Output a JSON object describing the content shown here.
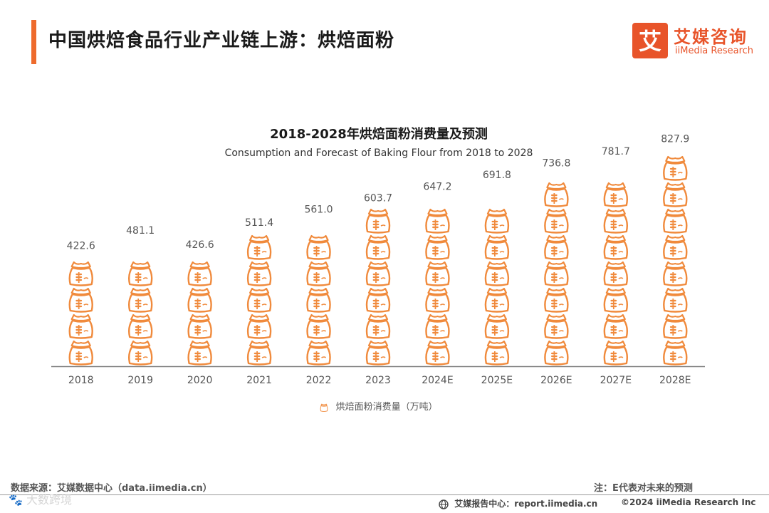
{
  "header": {
    "title": "中国烘焙食品行业产业链上游：烘焙面粉",
    "logo_cn": "艾媒咨询",
    "logo_en": "iiMedia Research",
    "logo_glyph": "艾"
  },
  "colors": {
    "accent": "#ee6b2d",
    "icon_orange": "#f08a3c",
    "axis": "#7f7f7f",
    "label": "#555555"
  },
  "chart_data": {
    "type": "bar",
    "title": "2018-2028年烘焙面粉消费量及预测",
    "subtitle": "Consumption and Forecast  of Baking Flour  from 2018 to 2028",
    "categories": [
      "2018",
      "2019",
      "2020",
      "2021",
      "2022",
      "2023",
      "2024E",
      "2025E",
      "2026E",
      "2027E",
      "2028E"
    ],
    "series": [
      {
        "name": "烘焙面粉消费量（万吨）",
        "values": [
          422.6,
          481.1,
          426.6,
          511.4,
          561.0,
          603.7,
          647.2,
          691.8,
          736.8,
          781.7,
          827.9
        ],
        "value_labels": [
          "422.6",
          "481.1",
          "426.6",
          "511.4",
          "561.0",
          "603.7",
          "647.2",
          "691.8",
          "736.8",
          "781.7",
          "827.9"
        ]
      }
    ],
    "legend_position": "bottom",
    "grid": false,
    "bar_style": "pictograph-flour-sack",
    "units_per_icon": 100,
    "ylim": [
      0,
      900
    ]
  },
  "footer": {
    "source": "数据来源：艾媒数据中心（data.iimedia.cn）",
    "note": "注：E代表对未来的预测",
    "report": "艾媒报告中心：report.iimedia.cn",
    "copyright": "©2024 iiMedia Research  Inc",
    "watermark": "🐾 大数跨境"
  }
}
